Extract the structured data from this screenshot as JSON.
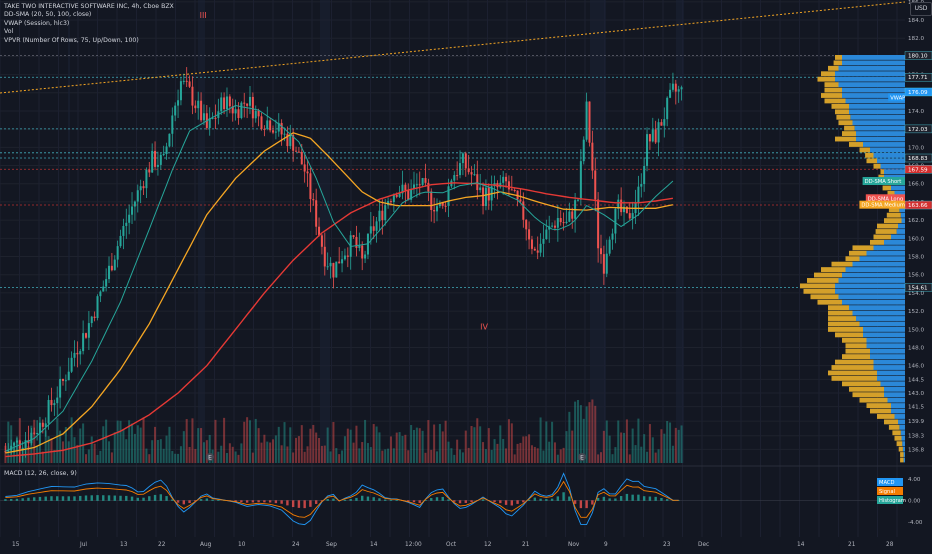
{
  "header": {
    "symbol_line": "TAKE TWO INTERACTIVE SOFTWARE INC, 4h, Cboe BZX",
    "indicators": [
      "DD-SMA (20, 50, 100, close)",
      "VWAP (Session, hlc3)",
      "Vol",
      "VPVR (Number Of Rows, 75, Up/Down, 100)"
    ],
    "macd_label": "MACD (12, 26, close, 9)",
    "currency": "USD"
  },
  "chart_data": {
    "type": "candlestick",
    "title": "TAKE TWO INTERACTIVE SOFTWARE INC, 4h, Cboe BZX",
    "ylim": [
      135.3,
      186.2
    ],
    "y_ticks": [
      136.8,
      138.3,
      139.9,
      141.5,
      143.0,
      144.5,
      146.0,
      148.0,
      150.0,
      152.0,
      154.0,
      156.0,
      158.0,
      160.0,
      162.0,
      164.0,
      166.0,
      168.0,
      170.0,
      172.0,
      174.0,
      176.0,
      178.0,
      180.0,
      182.0,
      184.0,
      186.0
    ],
    "x_ticks": [
      "15",
      "Jul",
      "13",
      "22",
      "Aug",
      "10",
      "24",
      "Sep",
      "14",
      "12:00",
      "Oct",
      "12",
      "21",
      "Nov",
      "9",
      "23",
      "Dec",
      "14",
      "21",
      "28"
    ],
    "price_labels": [
      {
        "value": "180.10",
        "color": "#1e222d"
      },
      {
        "value": "177.71",
        "color": "#1e222d"
      },
      {
        "value": "176.09",
        "color": "#2196f3"
      },
      {
        "value": "172.03",
        "color": "#1e222d"
      },
      {
        "value": "168.83",
        "color": "#1e222d"
      },
      {
        "value": "167.59",
        "color": "#d32f2f"
      },
      {
        "value": "163.66",
        "color": "#d32f2f"
      },
      {
        "value": "154.61",
        "color": "#1e222d"
      }
    ],
    "indicator_tags": [
      {
        "label": "VWAP",
        "value": 175.5,
        "color": "#2196f3"
      },
      {
        "label": "DD-SMA Short",
        "value": 166.3,
        "color": "#26a69a"
      },
      {
        "label": "DD-SMA Long",
        "value": 164.4,
        "color": "#ef5350"
      },
      {
        "label": "DD-SMA Medium",
        "value": 163.7,
        "color": "#f5a623"
      }
    ],
    "h_lines": [
      {
        "value": 180.1,
        "color": "#787b86",
        "dash": true
      },
      {
        "value": 177.71,
        "color": "#4dd0e1",
        "dash": true
      },
      {
        "value": 172.03,
        "color": "#4dd0e1",
        "dash": true
      },
      {
        "value": 169.4,
        "color": "#4dd0e1",
        "dash": true
      },
      {
        "value": 168.83,
        "color": "#4dd0e1",
        "dash": true
      },
      {
        "value": 167.59,
        "color": "#e53935",
        "dash": true
      },
      {
        "value": 163.66,
        "color": "#e53935",
        "dash": true
      },
      {
        "value": 154.61,
        "color": "#4dd0e1",
        "dash": true
      }
    ],
    "annotations": [
      {
        "text": "III",
        "x_index": 27,
        "value": 184.2
      },
      {
        "text": "IV",
        "x_index": 66,
        "value": 150.0
      }
    ],
    "close_path": [
      [
        0,
        136.6
      ],
      [
        4,
        137.4
      ],
      [
        8,
        138.2
      ],
      [
        12,
        139.5
      ],
      [
        16,
        141.8
      ],
      [
        20,
        144.2
      ],
      [
        24,
        147.5
      ],
      [
        28,
        149.8
      ],
      [
        32,
        153.0
      ],
      [
        36,
        156.5
      ],
      [
        40,
        160.2
      ],
      [
        44,
        163.4
      ],
      [
        48,
        166.5
      ],
      [
        51,
        168.6
      ],
      [
        55,
        168.4
      ],
      [
        58,
        173.6
      ],
      [
        61,
        177.2
      ],
      [
        64,
        176.0
      ],
      [
        67,
        174.2
      ],
      [
        70,
        172.0
      ],
      [
        73,
        173.5
      ],
      [
        76,
        175.2
      ],
      [
        80,
        174.0
      ],
      [
        84,
        175.3
      ],
      [
        88,
        173.2
      ],
      [
        92,
        172.8
      ],
      [
        96,
        171.5
      ],
      [
        100,
        170.5
      ],
      [
        104,
        167.5
      ],
      [
        108,
        162.0
      ],
      [
        111,
        158.0
      ],
      [
        114,
        156.5
      ],
      [
        117,
        158.3
      ],
      [
        121,
        159.7
      ],
      [
        124,
        157.4
      ],
      [
        127,
        160.6
      ],
      [
        130,
        162.3
      ],
      [
        133,
        164.4
      ],
      [
        136,
        165.5
      ],
      [
        140,
        164.8
      ],
      [
        144,
        166.1
      ],
      [
        148,
        164.0
      ],
      [
        152,
        163.2
      ],
      [
        155,
        166.8
      ],
      [
        159,
        168.3
      ],
      [
        162,
        167.0
      ],
      [
        166,
        164.6
      ],
      [
        170,
        165.3
      ],
      [
        174,
        166.0
      ],
      [
        177,
        164.2
      ],
      [
        180,
        162.5
      ],
      [
        184,
        158.4
      ],
      [
        188,
        160.5
      ],
      [
        192,
        162.2
      ],
      [
        195,
        161.5
      ],
      [
        199,
        164.4
      ],
      [
        202,
        174.2
      ],
      [
        204,
        167.5
      ],
      [
        206,
        159.5
      ],
      [
        208,
        157.2
      ],
      [
        210,
        160.8
      ],
      [
        213,
        163.2
      ],
      [
        216,
        162.0
      ],
      [
        220,
        165.0
      ],
      [
        223,
        170.6
      ],
      [
        226,
        171.3
      ],
      [
        229,
        173.6
      ],
      [
        232,
        176.1
      ]
    ],
    "sma_short": [
      [
        0,
        136.6
      ],
      [
        10,
        138.0
      ],
      [
        20,
        141.0
      ],
      [
        30,
        146.5
      ],
      [
        40,
        153.0
      ],
      [
        50,
        161.0
      ],
      [
        58,
        167.5
      ],
      [
        64,
        171.8
      ],
      [
        72,
        173.3
      ],
      [
        80,
        174.6
      ],
      [
        88,
        174.1
      ],
      [
        95,
        172.6
      ],
      [
        102,
        170.6
      ],
      [
        108,
        166.6
      ],
      [
        114,
        161.8
      ],
      [
        120,
        159.1
      ],
      [
        126,
        159.4
      ],
      [
        132,
        161.6
      ],
      [
        138,
        163.9
      ],
      [
        145,
        165.1
      ],
      [
        152,
        165.0
      ],
      [
        158,
        165.8
      ],
      [
        164,
        166.1
      ],
      [
        170,
        165.4
      ],
      [
        178,
        164.2
      ],
      [
        185,
        162.0
      ],
      [
        191,
        160.8
      ],
      [
        197,
        161.6
      ],
      [
        202,
        163.6
      ],
      [
        208,
        162.6
      ],
      [
        214,
        161.3
      ],
      [
        220,
        162.6
      ],
      [
        226,
        164.6
      ],
      [
        232,
        166.3
      ]
    ],
    "sma_medium": [
      [
        0,
        136.4
      ],
      [
        10,
        137.0
      ],
      [
        20,
        138.5
      ],
      [
        30,
        141.5
      ],
      [
        40,
        145.6
      ],
      [
        50,
        150.6
      ],
      [
        60,
        156.6
      ],
      [
        70,
        162.6
      ],
      [
        80,
        166.6
      ],
      [
        90,
        169.6
      ],
      [
        100,
        171.6
      ],
      [
        106,
        171.0
      ],
      [
        112,
        169.1
      ],
      [
        118,
        167.1
      ],
      [
        124,
        165.1
      ],
      [
        130,
        164.0
      ],
      [
        136,
        163.6
      ],
      [
        142,
        163.6
      ],
      [
        148,
        163.6
      ],
      [
        154,
        164.1
      ],
      [
        160,
        164.5
      ],
      [
        166,
        164.7
      ],
      [
        172,
        165.1
      ],
      [
        178,
        164.7
      ],
      [
        186,
        163.9
      ],
      [
        194,
        163.2
      ],
      [
        202,
        163.1
      ],
      [
        210,
        163.4
      ],
      [
        218,
        163.3
      ],
      [
        226,
        163.3
      ],
      [
        232,
        163.7
      ]
    ],
    "sma_long": [
      [
        0,
        136.0
      ],
      [
        10,
        136.3
      ],
      [
        20,
        136.7
      ],
      [
        30,
        137.5
      ],
      [
        40,
        138.8
      ],
      [
        50,
        140.6
      ],
      [
        60,
        143.0
      ],
      [
        70,
        146.0
      ],
      [
        80,
        150.0
      ],
      [
        90,
        154.0
      ],
      [
        100,
        157.6
      ],
      [
        110,
        160.6
      ],
      [
        120,
        162.8
      ],
      [
        130,
        164.3
      ],
      [
        140,
        165.3
      ],
      [
        148,
        165.9
      ],
      [
        156,
        166.1
      ],
      [
        164,
        166.0
      ],
      [
        172,
        165.8
      ],
      [
        180,
        165.4
      ],
      [
        188,
        164.9
      ],
      [
        196,
        164.5
      ],
      [
        204,
        164.2
      ],
      [
        212,
        163.9
      ],
      [
        220,
        163.9
      ],
      [
        226,
        164.1
      ],
      [
        232,
        164.4
      ]
    ],
    "volume_profile": {
      "rows": 75,
      "values_note": "Up/Down volume per price row",
      "up": [
        0.9,
        0.9,
        0.95,
        1.0,
        1.0,
        0.95,
        0.9,
        0.9,
        0.85,
        0.8,
        0.8,
        0.78,
        0.75,
        0.72,
        0.7,
        0.7,
        0.6,
        0.5,
        0.45,
        0.4,
        0.35,
        0.3,
        0.3,
        0.25,
        0.2,
        0.15,
        0.12,
        0.1,
        0.08,
        0.06,
        0.05,
        0.1,
        0.12,
        0.2,
        0.3,
        0.45,
        0.55,
        0.65,
        0.75,
        0.85,
        0.9,
        0.95,
        1.0,
        1.0,
        0.95,
        0.9,
        0.8,
        0.75,
        0.7,
        0.65,
        0.6,
        0.6,
        0.55,
        0.55,
        0.5,
        0.5,
        0.45,
        0.45,
        0.4,
        0.4,
        0.35,
        0.3,
        0.3,
        0.25,
        0.2,
        0.2,
        0.15,
        0.1,
        0.08,
        0.06,
        0.05,
        0.04,
        0.03,
        0.02,
        0.02
      ],
      "down": [
        0.1,
        0.12,
        0.15,
        0.2,
        0.25,
        0.2,
        0.25,
        0.3,
        0.3,
        0.25,
        0.2,
        0.2,
        0.2,
        0.15,
        0.2,
        0.3,
        0.2,
        0.15,
        0.12,
        0.15,
        0.1,
        0.05,
        0.08,
        0.1,
        0.12,
        0.1,
        0.15,
        0.1,
        0.15,
        0.2,
        0.25,
        0.3,
        0.3,
        0.25,
        0.2,
        0.3,
        0.25,
        0.2,
        0.3,
        0.35,
        0.4,
        0.45,
        0.5,
        0.45,
        0.4,
        0.35,
        0.3,
        0.35,
        0.4,
        0.45,
        0.5,
        0.4,
        0.35,
        0.3,
        0.35,
        0.4,
        0.55,
        0.6,
        0.7,
        0.65,
        0.55,
        0.5,
        0.45,
        0.4,
        0.35,
        0.3,
        0.25,
        0.2,
        0.15,
        0.12,
        0.1,
        0.08,
        0.06,
        0.05,
        0.05
      ]
    },
    "macd": {
      "y_ticks": [
        "4.00",
        "0.00",
        "-4.00"
      ],
      "ylim": [
        -5.5,
        6.0
      ],
      "legend": [
        {
          "label": "MACD",
          "color": "#2196f3"
        },
        {
          "label": "Signal",
          "color": "#f57c00"
        },
        {
          "label": "Histogram",
          "color": "#26a69a"
        }
      ]
    },
    "markers": [
      "E",
      "E"
    ]
  },
  "colors": {
    "background": "#131722",
    "up": "#26a69a",
    "down": "#ef5350",
    "sma_short": "#26a69a",
    "sma_medium": "#f5a623",
    "sma_long": "#e53935",
    "vp_up": "#2b88d8",
    "vp_down": "#d4a02a"
  }
}
